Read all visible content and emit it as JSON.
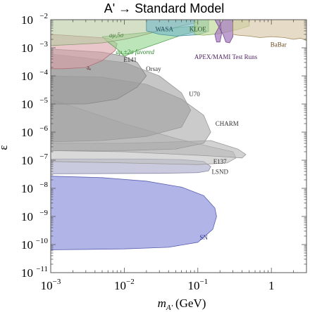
{
  "chart_data": {
    "type": "area",
    "title": "A' → Standard Model",
    "xlabel": "m",
    "xlabel_sub": "A'",
    "xlabel_unit": "(GeV)",
    "ylabel": "ε",
    "x_scale": "log",
    "y_scale": "log",
    "xlim": [
      0.001,
      3.0
    ],
    "ylim": [
      1e-11,
      0.01
    ],
    "x_ticks": [
      {
        "value": 0.001,
        "base": "10",
        "exp": "−3"
      },
      {
        "value": 0.01,
        "base": "10",
        "exp": "−2"
      },
      {
        "value": 0.1,
        "base": "10",
        "exp": "−1"
      },
      {
        "value": 1,
        "base": "1",
        "exp": ""
      }
    ],
    "y_ticks": [
      {
        "value": 0.01,
        "base": "10",
        "exp": "−2"
      },
      {
        "value": 0.001,
        "base": "10",
        "exp": "−3"
      },
      {
        "value": 0.0001,
        "base": "10",
        "exp": "−4"
      },
      {
        "value": 1e-05,
        "base": "10",
        "exp": "−5"
      },
      {
        "value": 1e-06,
        "base": "10",
        "exp": "−6"
      },
      {
        "value": 1e-07,
        "base": "10",
        "exp": "−7"
      },
      {
        "value": 1e-08,
        "base": "10",
        "exp": "−8"
      },
      {
        "value": 1e-09,
        "base": "10",
        "exp": "−9"
      },
      {
        "value": 1e-10,
        "base": "10",
        "exp": "−10"
      },
      {
        "value": 1e-11,
        "base": "10",
        "exp": "−11"
      }
    ],
    "regions": [
      {
        "id": "sn",
        "label": "SN",
        "color": "#8e94db",
        "stroke": "#5a5fb0",
        "opacity": 0.7,
        "label_color": "#2f3590",
        "label_at": [
          0.12,
          1.5e-10
        ],
        "polygon": [
          [
            0.001,
            2.7e-08
          ],
          [
            0.005,
            2.4e-08
          ],
          [
            0.02,
            1.8e-08
          ],
          [
            0.06,
            1.1e-08
          ],
          [
            0.12,
            5.5e-09
          ],
          [
            0.17,
            2e-09
          ],
          [
            0.18,
            1e-09
          ],
          [
            0.16,
            3.5e-10
          ],
          [
            0.1,
            1.2e-10
          ],
          [
            0.04,
            8e-11
          ],
          [
            0.01,
            7e-11
          ],
          [
            0.001,
            6.5e-11
          ]
        ]
      },
      {
        "id": "lsnd",
        "label": "LSND",
        "color": "#9e9ec2",
        "stroke": "#8a8aaa",
        "opacity": 0.55,
        "label_color": "#333",
        "label_at": [
          0.2,
          3.3e-08
        ],
        "polygon": [
          [
            0.001,
            1.1e-07
          ],
          [
            0.02,
            1.1e-07
          ],
          [
            0.06,
            1.05e-07
          ],
          [
            0.12,
            9e-08
          ],
          [
            0.15,
            6e-08
          ],
          [
            0.14,
            4.2e-08
          ],
          [
            0.1,
            3.6e-08
          ],
          [
            0.03,
            3.4e-08
          ],
          [
            0.001,
            3.3e-08
          ]
        ]
      },
      {
        "id": "e137",
        "label": "E137",
        "color": "#c0c0c0",
        "stroke": "#999",
        "opacity": 0.6,
        "label_color": "#333",
        "label_at": [
          0.2,
          7.5e-08
        ],
        "polygon": [
          [
            0.001,
            1.5e-05
          ],
          [
            0.01,
            2e-06
          ],
          [
            0.05,
            6e-07
          ],
          [
            0.15,
            3e-07
          ],
          [
            0.3,
            2e-07
          ],
          [
            0.33,
            1.2e-07
          ],
          [
            0.25,
            8e-08
          ],
          [
            0.1,
            7e-08
          ],
          [
            0.01,
            8e-08
          ],
          [
            0.001,
            9e-08
          ]
        ]
      },
      {
        "id": "charm",
        "label": "CHARM",
        "color": "#b4b4b4",
        "stroke": "#999",
        "opacity": 0.6,
        "label_color": "#333",
        "label_at": [
          0.25,
          1.7e-06
        ],
        "polygon": [
          [
            0.001,
            4e-07
          ],
          [
            0.01,
            4e-07
          ],
          [
            0.05,
            4.5e-07
          ],
          [
            0.15,
            5e-07
          ],
          [
            0.35,
            2.5e-07
          ],
          [
            0.45,
            1.6e-07
          ],
          [
            0.4,
            1.2e-07
          ],
          [
            0.25,
            1.3e-07
          ],
          [
            0.1,
            1.5e-07
          ],
          [
            0.01,
            2e-07
          ],
          [
            0.001,
            2.2e-07
          ]
        ]
      },
      {
        "id": "u70",
        "label": "U70",
        "color": "#a8a8a8",
        "stroke": "#999",
        "opacity": 0.6,
        "label_color": "#333",
        "label_at": [
          0.09,
          1.9e-05
        ],
        "polygon": [
          [
            0.001,
            0.0001
          ],
          [
            0.005,
            9e-05
          ],
          [
            0.02,
            5e-05
          ],
          [
            0.06,
            1.5e-05
          ],
          [
            0.12,
            4e-06
          ],
          [
            0.15,
            1e-06
          ],
          [
            0.12,
            4e-07
          ],
          [
            0.05,
            2.5e-07
          ],
          [
            0.01,
            2.2e-07
          ],
          [
            0.001,
            2.2e-07
          ]
        ]
      },
      {
        "id": "orsay",
        "label": "Orsay",
        "color": "#a0a0a0",
        "stroke": "#999",
        "opacity": 0.6,
        "label_color": "#333",
        "label_at": [
          0.025,
          0.00015
        ],
        "polygon": [
          [
            0.001,
            0.0006
          ],
          [
            0.01,
            0.0003
          ],
          [
            0.03,
            0.0001
          ],
          [
            0.06,
            2.5e-05
          ],
          [
            0.08,
            6e-06
          ],
          [
            0.06,
            1.5e-06
          ],
          [
            0.02,
            7e-07
          ],
          [
            0.005,
            5e-07
          ],
          [
            0.001,
            4.5e-07
          ]
        ]
      },
      {
        "id": "e141",
        "label": "E141",
        "color": "#9a9a9a",
        "stroke": "#888",
        "opacity": 0.6,
        "label_color": "#333",
        "label_at": [
          0.012,
          0.00032
        ],
        "polygon": [
          [
            0.001,
            0.0009
          ],
          [
            0.005,
            0.0007
          ],
          [
            0.01,
            0.0005
          ],
          [
            0.015,
            0.0003
          ],
          [
            0.02,
            0.0001
          ],
          [
            0.015,
            4e-05
          ],
          [
            0.008,
            1.5e-05
          ],
          [
            0.003,
            1e-05
          ],
          [
            0.001,
            1e-05
          ]
        ]
      },
      {
        "id": "ae",
        "label": "aₑ",
        "color": "#d9a0a6",
        "stroke": "#b07078",
        "opacity": 0.6,
        "label_color": "#6b2a30",
        "label_at": [
          0.0033,
          0.00017
        ],
        "polygon": [
          [
            0.001,
            0.003
          ],
          [
            0.003,
            0.0025
          ],
          [
            0.006,
            0.0022
          ],
          [
            0.008,
            0.0014
          ],
          [
            0.0075,
            0.0008
          ],
          [
            0.005,
            0.00035
          ],
          [
            0.003,
            0.0002
          ],
          [
            0.0015,
            0.00018
          ],
          [
            0.001,
            0.00018
          ]
        ]
      },
      {
        "id": "favored",
        "label": "aμ,±2σ favored",
        "color": "#8fd68a",
        "stroke": "#5aa055",
        "opacity": 0.6,
        "label_color": "#2a8a2a",
        "label_at": [
          0.014,
          0.0006
        ],
        "polygon": [
          [
            0.005,
            0.0025
          ],
          [
            0.02,
            0.0035
          ],
          [
            0.06,
            0.0055
          ],
          [
            0.1,
            0.006
          ],
          [
            0.1,
            0.004
          ],
          [
            0.06,
            0.0028
          ],
          [
            0.03,
            0.0015
          ],
          [
            0.015,
            0.0008
          ],
          [
            0.01,
            0.0005
          ],
          [
            0.008,
            0.0009
          ],
          [
            0.006,
            0.0016
          ]
        ]
      },
      {
        "id": "amu5",
        "label": "aμ,5σ",
        "color": "#b7c9a0",
        "stroke": "#8a9a70",
        "opacity": 0.6,
        "label_color": "#4a7a3a",
        "label_at": [
          0.0078,
          0.0024
        ],
        "polygon": [
          [
            0.001,
            0.01
          ],
          [
            0.02,
            0.01
          ],
          [
            0.08,
            0.01
          ],
          [
            0.1,
            0.008
          ],
          [
            0.06,
            0.006
          ],
          [
            0.03,
            0.004
          ],
          [
            0.015,
            0.0025
          ],
          [
            0.01,
            0.002
          ],
          [
            0.005,
            0.0015
          ],
          [
            0.002,
            0.0013
          ],
          [
            0.001,
            0.0012
          ]
        ]
      },
      {
        "id": "wasa",
        "label": "WASA",
        "color": "#7ab8c8",
        "stroke": "#4a90a0",
        "opacity": 0.65,
        "label_color": "#1e4a5c",
        "label_at": [
          0.035,
          0.0039
        ],
        "polygon": [
          [
            0.02,
            0.01
          ],
          [
            0.14,
            0.01
          ],
          [
            0.14,
            0.0038
          ],
          [
            0.1,
            0.0029
          ],
          [
            0.05,
            0.0026
          ],
          [
            0.03,
            0.003
          ],
          [
            0.02,
            0.004
          ]
        ]
      },
      {
        "id": "kloe",
        "label": "KLOE",
        "color": "#b8d68a",
        "stroke": "#8ab060",
        "opacity": 0.6,
        "label_color": "#2a5020",
        "label_at": [
          0.1,
          0.0039
        ],
        "polygon": [
          [
            0.09,
            0.01
          ],
          [
            0.5,
            0.01
          ],
          [
            0.5,
            0.006
          ],
          [
            0.35,
            0.0045
          ],
          [
            0.2,
            0.0032
          ],
          [
            0.12,
            0.0028
          ],
          [
            0.09,
            0.003
          ]
        ]
      },
      {
        "id": "apex",
        "label": "APEX/MAMI Test Runs",
        "color": "#a880c0",
        "stroke": "#7a4a90",
        "opacity": 0.75,
        "label_color": "#4a1f60",
        "label_at": [
          0.24,
          0.0004
        ],
        "polygon": [
          [
            0.17,
            0.01
          ],
          [
            0.2,
            0.01
          ],
          [
            0.21,
            0.003
          ],
          [
            0.2,
            0.0016
          ],
          [
            0.18,
            0.0016
          ],
          [
            0.17,
            0.003
          ],
          [
            0.22,
            0.01
          ],
          [
            0.3,
            0.01
          ],
          [
            0.3,
            0.0025
          ],
          [
            0.27,
            0.0015
          ],
          [
            0.24,
            0.0016
          ],
          [
            0.22,
            0.003
          ]
        ]
      },
      {
        "id": "babar",
        "label": "BaBar",
        "color": "#d8c8a8",
        "stroke": "#a08860",
        "opacity": 0.65,
        "label_color": "#6b4a20",
        "label_at": [
          1.25,
          0.0011
        ],
        "polygon": [
          [
            0.3,
            0.01
          ],
          [
            3.0,
            0.01
          ],
          [
            3.0,
            0.0018
          ],
          [
            2.5,
            0.0022
          ],
          [
            2.0,
            0.002
          ],
          [
            1.5,
            0.0023
          ],
          [
            1.0,
            0.0025
          ],
          [
            0.7,
            0.0023
          ],
          [
            0.5,
            0.0026
          ],
          [
            0.35,
            0.0028
          ],
          [
            0.3,
            0.003
          ]
        ]
      }
    ]
  }
}
